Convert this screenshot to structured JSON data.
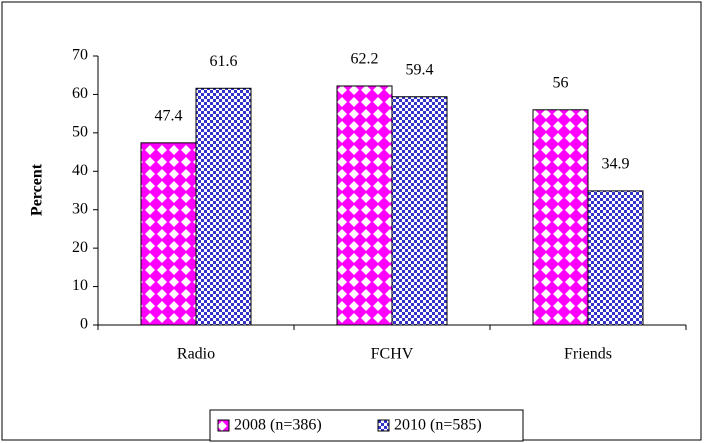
{
  "chart_data": {
    "type": "bar",
    "y_label": "Percent",
    "categories": [
      "Radio",
      "FCHV",
      "Friends"
    ],
    "series": [
      {
        "name": "2008 (n=386)",
        "color": "#ff00ff",
        "values": [
          47.4,
          62.2,
          56
        ]
      },
      {
        "name": "2010 (n=585)",
        "color": "#3333cc",
        "values": [
          61.6,
          59.4,
          34.9
        ]
      }
    ],
    "ylim": [
      0,
      70
    ],
    "yticks": [
      0,
      10,
      20,
      30,
      40,
      50,
      60,
      70
    ],
    "grid": false,
    "legend": "bottom"
  }
}
